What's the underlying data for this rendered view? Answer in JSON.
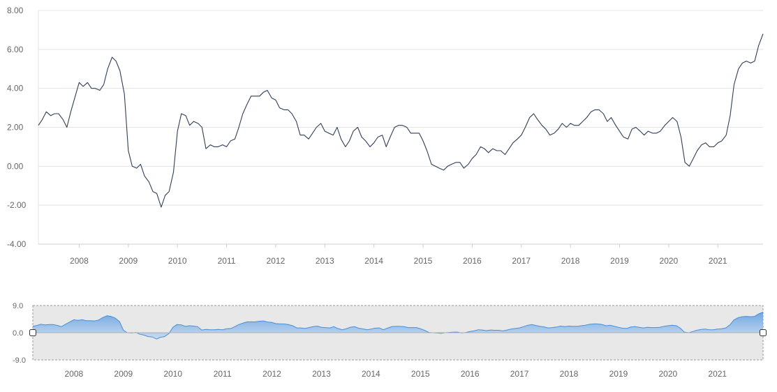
{
  "chart_data": [
    {
      "type": "line",
      "title": "",
      "xlabel": "",
      "ylabel": "",
      "ylim": [
        -4,
        8
      ],
      "y_ticks": [
        "8.00",
        "6.00",
        "4.00",
        "2.00",
        "0.00",
        "-2.00",
        "-4.00"
      ],
      "x_ticks": [
        "2008",
        "2009",
        "2010",
        "2011",
        "2012",
        "2013",
        "2014",
        "2015",
        "2016",
        "2017",
        "2018",
        "2019",
        "2020",
        "2021"
      ],
      "grid": true,
      "series": [
        {
          "color": "#2f3e56",
          "x": [
            2007.17,
            2007.25,
            2007.33,
            2007.42,
            2007.5,
            2007.58,
            2007.67,
            2007.75,
            2007.83,
            2007.92,
            2008.0,
            2008.08,
            2008.17,
            2008.25,
            2008.33,
            2008.42,
            2008.5,
            2008.58,
            2008.67,
            2008.75,
            2008.83,
            2008.92,
            2009.0,
            2009.08,
            2009.17,
            2009.25,
            2009.33,
            2009.42,
            2009.5,
            2009.58,
            2009.67,
            2009.75,
            2009.83,
            2009.92,
            2010.0,
            2010.08,
            2010.17,
            2010.25,
            2010.33,
            2010.42,
            2010.5,
            2010.58,
            2010.67,
            2010.75,
            2010.83,
            2010.92,
            2011.0,
            2011.08,
            2011.17,
            2011.25,
            2011.33,
            2011.42,
            2011.5,
            2011.58,
            2011.67,
            2011.75,
            2011.83,
            2011.92,
            2012.0,
            2012.08,
            2012.17,
            2012.25,
            2012.33,
            2012.42,
            2012.5,
            2012.58,
            2012.67,
            2012.75,
            2012.83,
            2012.92,
            2013.0,
            2013.08,
            2013.17,
            2013.25,
            2013.33,
            2013.42,
            2013.5,
            2013.58,
            2013.67,
            2013.75,
            2013.83,
            2013.92,
            2014.0,
            2014.08,
            2014.17,
            2014.25,
            2014.33,
            2014.42,
            2014.5,
            2014.58,
            2014.67,
            2014.75,
            2014.83,
            2014.92,
            2015.0,
            2015.08,
            2015.17,
            2015.25,
            2015.33,
            2015.42,
            2015.5,
            2015.58,
            2015.67,
            2015.75,
            2015.83,
            2015.92,
            2016.0,
            2016.08,
            2016.17,
            2016.25,
            2016.33,
            2016.42,
            2016.5,
            2016.58,
            2016.67,
            2016.75,
            2016.83,
            2016.92,
            2017.0,
            2017.08,
            2017.17,
            2017.25,
            2017.33,
            2017.42,
            2017.5,
            2017.58,
            2017.67,
            2017.75,
            2017.83,
            2017.92,
            2018.0,
            2018.08,
            2018.17,
            2018.25,
            2018.33,
            2018.42,
            2018.5,
            2018.58,
            2018.67,
            2018.75,
            2018.83,
            2018.92,
            2019.0,
            2019.08,
            2019.17,
            2019.25,
            2019.33,
            2019.42,
            2019.5,
            2019.58,
            2019.67,
            2019.75,
            2019.83,
            2019.92,
            2020.0,
            2020.08,
            2020.17,
            2020.25,
            2020.33,
            2020.42,
            2020.5,
            2020.58,
            2020.67,
            2020.75,
            2020.83,
            2020.92,
            2021.0,
            2021.08,
            2021.17,
            2021.25,
            2021.33,
            2021.42,
            2021.5,
            2021.58,
            2021.67,
            2021.75,
            2021.83,
            2021.92
          ],
          "values": [
            2.1,
            2.4,
            2.8,
            2.6,
            2.7,
            2.7,
            2.4,
            2.0,
            2.8,
            3.6,
            4.3,
            4.1,
            4.3,
            4.0,
            4.0,
            3.9,
            4.2,
            5.0,
            5.6,
            5.4,
            4.9,
            3.7,
            0.8,
            0.0,
            -0.1,
            0.1,
            -0.5,
            -0.8,
            -1.3,
            -1.4,
            -2.1,
            -1.5,
            -1.3,
            -0.3,
            1.8,
            2.7,
            2.6,
            2.1,
            2.3,
            2.2,
            2.0,
            0.9,
            1.1,
            1.0,
            1.0,
            1.1,
            1.0,
            1.3,
            1.4,
            2.0,
            2.7,
            3.2,
            3.6,
            3.6,
            3.6,
            3.8,
            3.9,
            3.5,
            3.4,
            3.0,
            2.9,
            2.9,
            2.7,
            2.3,
            1.6,
            1.6,
            1.4,
            1.7,
            2.0,
            2.2,
            1.8,
            1.7,
            1.6,
            2.0,
            1.4,
            1.0,
            1.3,
            1.8,
            2.0,
            1.5,
            1.3,
            1.0,
            1.2,
            1.5,
            1.6,
            1.0,
            1.5,
            2.0,
            2.1,
            2.1,
            2.0,
            1.7,
            1.7,
            1.7,
            1.3,
            0.8,
            0.1,
            0.0,
            -0.1,
            -0.2,
            0.0,
            0.1,
            0.2,
            0.2,
            -0.1,
            0.1,
            0.4,
            0.6,
            1.0,
            0.9,
            0.7,
            0.9,
            0.8,
            0.8,
            0.6,
            0.9,
            1.2,
            1.4,
            1.6,
            2.0,
            2.5,
            2.7,
            2.4,
            2.1,
            1.9,
            1.6,
            1.7,
            1.9,
            2.2,
            2.0,
            2.2,
            2.1,
            2.1,
            2.3,
            2.5,
            2.8,
            2.9,
            2.9,
            2.7,
            2.3,
            2.5,
            2.1,
            1.8,
            1.5,
            1.4,
            1.9,
            2.0,
            1.8,
            1.6,
            1.8,
            1.7,
            1.7,
            1.8,
            2.1,
            2.3,
            2.5,
            2.3,
            1.5,
            0.2,
            0.0,
            0.4,
            0.8,
            1.1,
            1.2,
            1.0,
            1.0,
            1.2,
            1.3,
            1.6,
            2.6,
            4.2,
            5.0,
            5.3,
            5.4,
            5.3,
            5.4,
            6.2,
            6.8
          ]
        }
      ]
    },
    {
      "type": "area",
      "title": "",
      "role": "range-navigator",
      "ylim": [
        -9,
        9
      ],
      "y_ticks": [
        "9.0",
        "0.0",
        "-9.0"
      ],
      "x_ticks": [
        "2008",
        "2009",
        "2010",
        "2011",
        "2012",
        "2013",
        "2014",
        "2015",
        "2016",
        "2017",
        "2018",
        "2019",
        "2020",
        "2021"
      ],
      "selected_range": [
        "2007.17",
        "2021.92"
      ],
      "series_color": "#4a8fd6"
    }
  ]
}
